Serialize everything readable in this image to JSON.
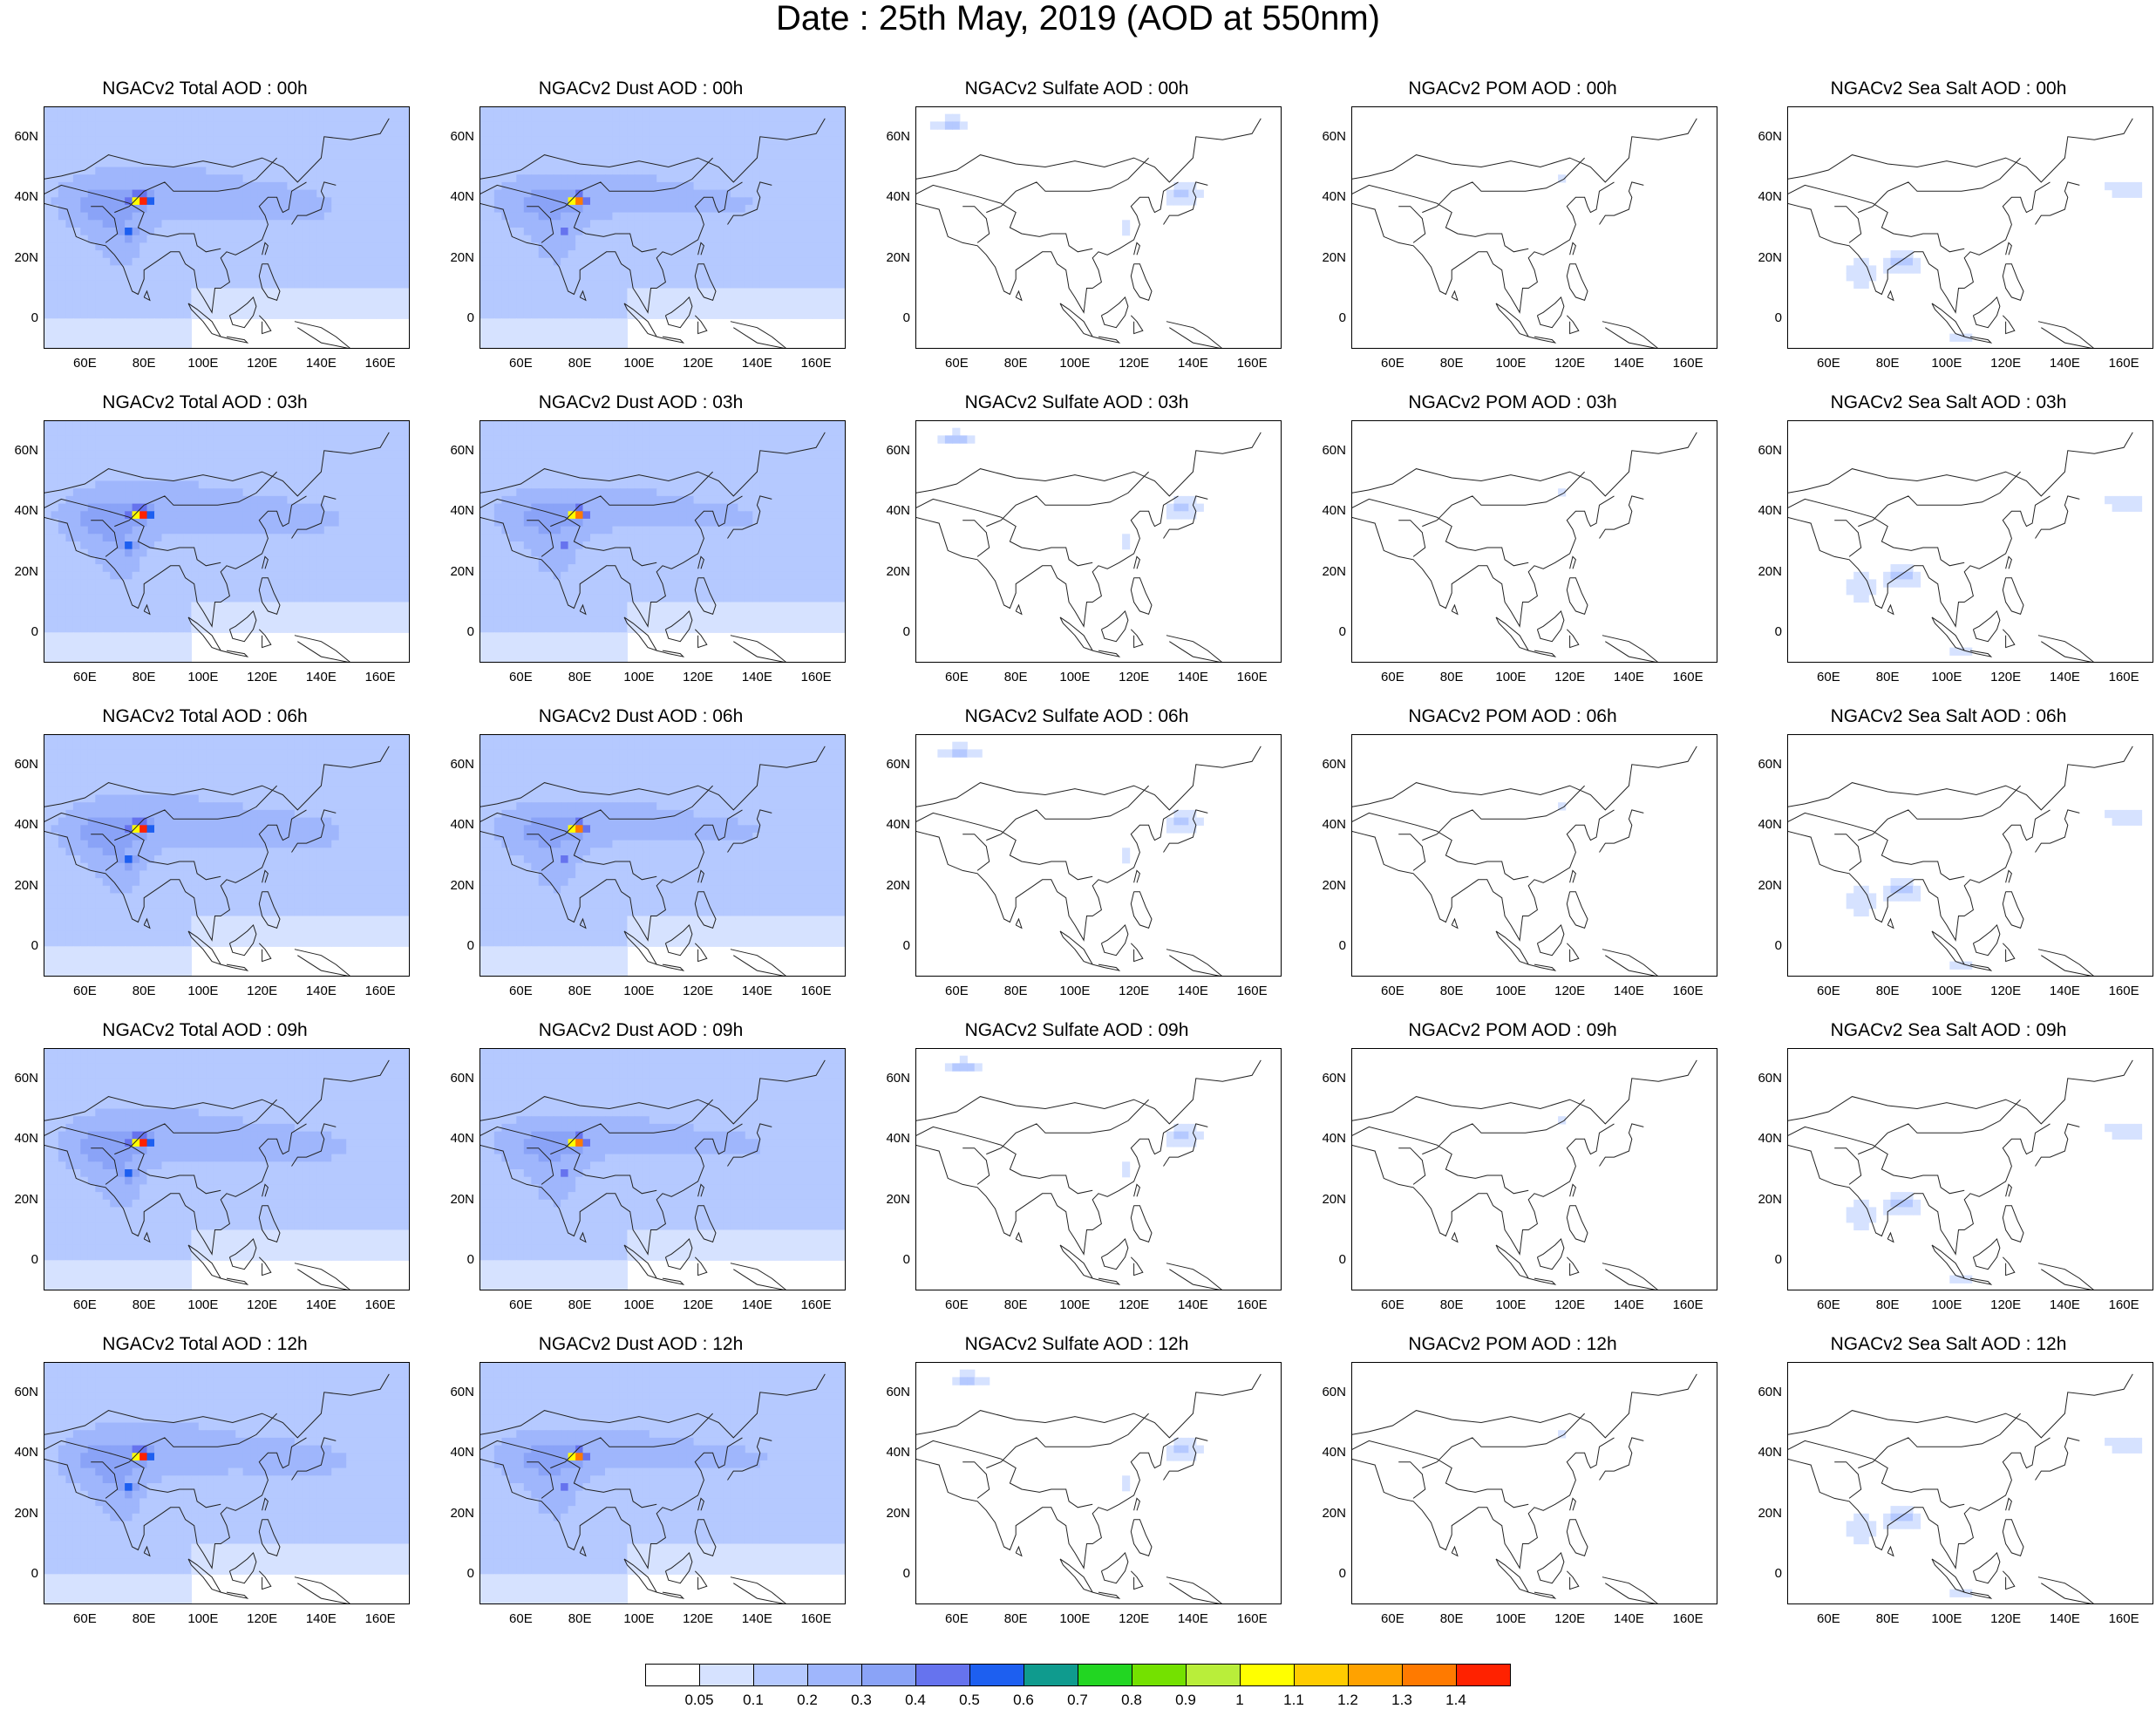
{
  "title": "Date : 25th May, 2019 (AOD at 550nm)",
  "lon_ticks": [
    "60E",
    "80E",
    "100E",
    "120E",
    "140E",
    "160E"
  ],
  "lat_ticks": [
    "60N",
    "40N",
    "20N",
    "0"
  ],
  "species": [
    {
      "key": "total",
      "intensity": 1.0
    },
    {
      "key": "dust",
      "intensity": 0.95
    },
    {
      "key": "sulfate",
      "intensity": 0.18
    },
    {
      "key": "pom",
      "intensity": 0.05
    },
    {
      "key": "seasalt",
      "intensity": 0.15
    }
  ],
  "panel_titles": [
    [
      "NGACv2 Total AOD : 00h",
      "NGACv2 Dust AOD : 00h",
      "NGACv2 Sulfate AOD : 00h",
      "NGACv2 POM AOD : 00h",
      "NGACv2 Sea Salt AOD : 00h"
    ],
    [
      "NGACv2 Total AOD : 03h",
      "NGACv2 Dust AOD : 03h",
      "NGACv2 Sulfate AOD : 03h",
      "NGACv2 POM AOD : 03h",
      "NGACv2 Sea Salt AOD : 03h"
    ],
    [
      "NGACv2 Total AOD : 06h",
      "NGACv2 Dust AOD : 06h",
      "NGACv2 Sulfate AOD : 06h",
      "NGACv2 POM AOD : 06h",
      "NGACv2 Sea Salt AOD : 06h"
    ],
    [
      "NGACv2 Total AOD : 09h",
      "NGACv2 Dust AOD : 09h",
      "NGACv2 Sulfate AOD : 09h",
      "NGACv2 POM AOD : 09h",
      "NGACv2 Sea Salt  AOD : 09h"
    ],
    [
      "NGACv2 Total AOD  : 12h",
      "NGACv2 Dust AOD : 12h",
      "NGACv2 Sulfate AOD : 12h",
      "NGACv2 POM  AOD : 12h",
      "NGACv2 Sea Salt  AOD : 12h"
    ]
  ],
  "colorbar": {
    "labels": [
      "0.05",
      "0.1",
      "0.2",
      "0.3",
      "0.4",
      "0.5",
      "0.6",
      "0.7",
      "0.8",
      "0.9",
      "1",
      "1.1",
      "1.2",
      "1.3",
      "1.4"
    ],
    "colors": [
      "#ffffff",
      "#d6e2ff",
      "#b5c9ff",
      "#9fb6fc",
      "#8aa3f7",
      "#6673ee",
      "#1d5ff0",
      "#0f9b8e",
      "#22d622",
      "#74e100",
      "#b9ee3a",
      "#ffff00",
      "#ffcc00",
      "#ffa200",
      "#ff7a00",
      "#ff2200"
    ]
  }
}
